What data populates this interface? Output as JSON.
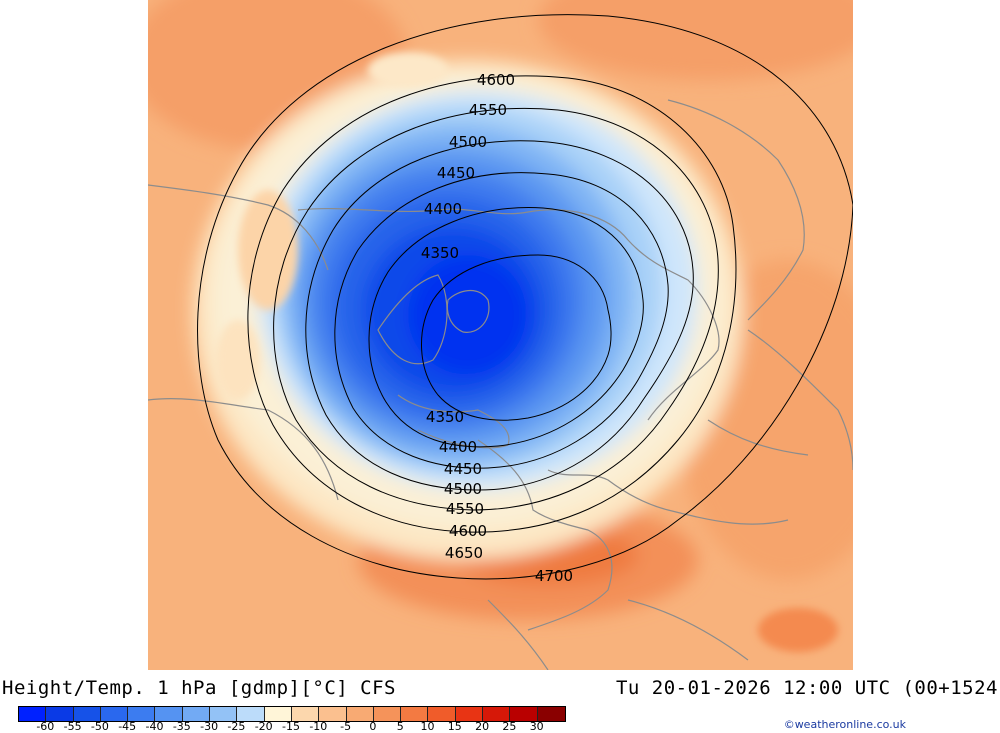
{
  "header": {
    "title": "Height/Temp. 1 hPa [gdmp][°C] CFS",
    "datetime": "Tu 20-01-2026 12:00 UTC (00+1524"
  },
  "map": {
    "projection": "north polar stereographic",
    "contour_labels": [
      "4600",
      "4550",
      "4500",
      "4450",
      "4400",
      "4350",
      "4350",
      "4400",
      "4450",
      "4500",
      "4550",
      "4600",
      "4650",
      "4700"
    ]
  },
  "legend": {
    "tick_labels": [
      "-60",
      "-55",
      "-50",
      "-45",
      "-40",
      "-35",
      "-30",
      "-25",
      "-20",
      "-15",
      "-10",
      "-5",
      "0",
      "5",
      "10",
      "15",
      "20",
      "25",
      "30"
    ],
    "colors": [
      "#0021ff",
      "#0a3ae6",
      "#1652e8",
      "#2a68ee",
      "#3c7cf0",
      "#5593f2",
      "#72aaf4",
      "#93c2f6",
      "#bcdcfa",
      "#fff5d8",
      "#fcd7ad",
      "#fbc08f",
      "#f8aa73",
      "#f5935a",
      "#f37a42",
      "#f05c2a",
      "#e83414",
      "#d61808",
      "#b90000",
      "#8a0000"
    ]
  },
  "credit": "©weatheronline.co.uk"
}
